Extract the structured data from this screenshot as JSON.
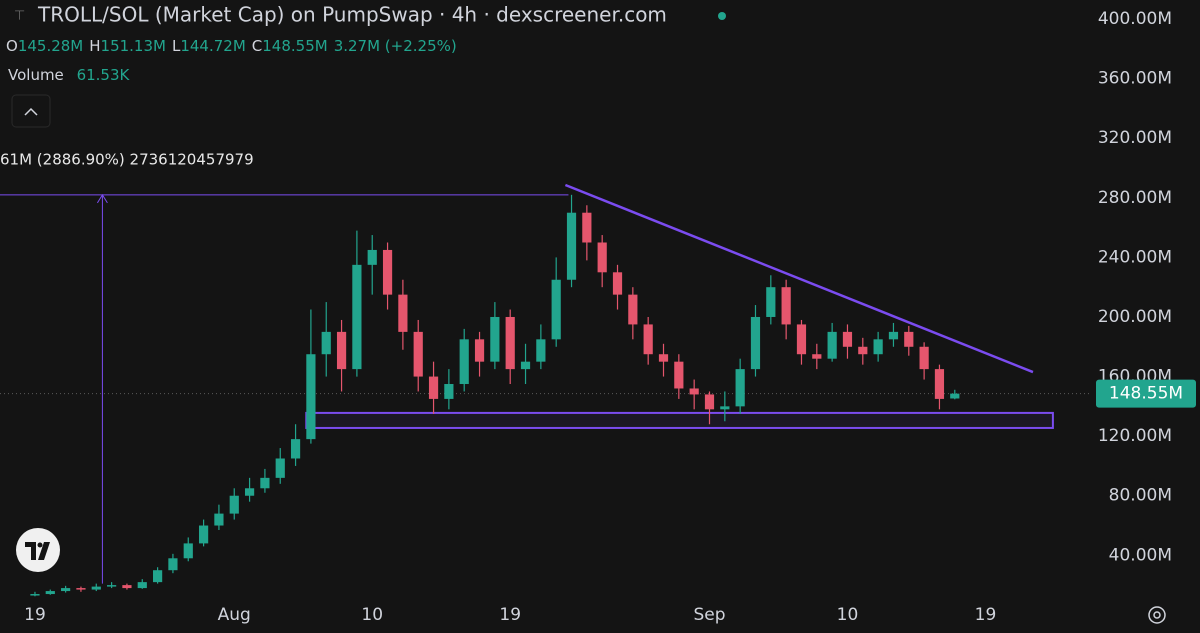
{
  "chart_data": {
    "type": "candlestick",
    "title": "TROLL/SOL (Market Cap) on PumpSwap · 4h · dexscreener.com",
    "ohlc_legend": [
      {
        "key": "O",
        "label": "145.28M"
      },
      {
        "key": "H",
        "label": "151.13M"
      },
      {
        "key": "L",
        "label": "144.72M"
      },
      {
        "key": "C",
        "label": "148.55M"
      }
    ],
    "change_label": "3.27M (+2.25%)",
    "volume_label": "Volume",
    "volume_value": "61.53K",
    "measure_label": "61M (2886.90%) 2736120457979",
    "last_price": {
      "value": 148.55,
      "label": "148.55M"
    },
    "up_color": "#22a58e",
    "down_color": "#e5566d",
    "annotation_color": "#7b4cf0",
    "x": [
      18,
      19,
      20,
      21,
      22,
      23,
      24,
      25,
      26,
      27,
      28,
      29,
      30,
      31,
      32,
      33,
      34,
      35,
      36,
      37,
      38,
      39,
      40,
      41,
      42,
      43,
      44,
      45,
      46,
      47,
      48,
      49,
      50,
      51,
      52,
      53,
      54,
      55,
      56,
      57,
      58,
      59,
      60,
      61,
      62,
      63,
      64,
      65,
      66,
      67,
      68,
      69,
      70,
      71,
      72,
      73,
      74,
      75,
      76,
      77,
      78
    ],
    "open": [
      13,
      14,
      16,
      18,
      17,
      19,
      20,
      18,
      22,
      30,
      38,
      48,
      60,
      68,
      80,
      85,
      92,
      105,
      118,
      175,
      190,
      165,
      235,
      245,
      215,
      190,
      160,
      145,
      155,
      185,
      170,
      200,
      165,
      170,
      185,
      225,
      270,
      250,
      230,
      215,
      195,
      175,
      170,
      152,
      148,
      138,
      140,
      165,
      200,
      220,
      195,
      175,
      172,
      190,
      180,
      175,
      185,
      190,
      180,
      165,
      145.28
    ],
    "high": [
      15.5,
      17,
      19.5,
      19,
      21,
      22,
      21,
      24,
      32,
      41,
      52,
      64,
      74,
      85,
      92,
      98,
      112,
      128,
      205,
      210,
      198,
      258,
      255,
      250,
      225,
      198,
      170,
      165,
      192,
      190,
      210,
      205,
      182,
      195,
      240,
      282,
      275,
      255,
      235,
      220,
      200,
      182,
      175,
      158,
      150,
      150,
      172,
      208,
      228,
      225,
      198,
      182,
      196,
      195,
      186,
      190,
      196,
      194,
      183,
      168,
      151.13
    ],
    "low": [
      12.5,
      13.5,
      15,
      15.5,
      16,
      18,
      17,
      17.5,
      21,
      28,
      36,
      46,
      57,
      64,
      76,
      82,
      88,
      100,
      115,
      160,
      150,
      160,
      215,
      205,
      178,
      150,
      135,
      138,
      150,
      160,
      165,
      155,
      155,
      165,
      180,
      220,
      238,
      220,
      205,
      185,
      168,
      160,
      145,
      138,
      128,
      130,
      135,
      160,
      195,
      185,
      168,
      165,
      170,
      172,
      168,
      170,
      180,
      174,
      158,
      138,
      144.72
    ],
    "close": [
      14,
      16,
      18,
      17,
      19,
      20,
      18,
      22,
      30,
      38,
      48,
      60,
      68,
      80,
      85,
      92,
      105,
      118,
      175,
      190,
      165,
      235,
      245,
      215,
      190,
      160,
      145,
      155,
      185,
      170,
      200,
      165,
      170,
      185,
      225,
      270,
      250,
      230,
      215,
      195,
      175,
      170,
      152,
      148,
      138,
      140,
      165,
      200,
      220,
      195,
      175,
      172,
      190,
      180,
      175,
      185,
      190,
      180,
      165,
      145,
      148.55
    ],
    "xlim": [
      15.72,
      86.82
    ],
    "xticks": [
      {
        "value": 18,
        "label": "19"
      },
      {
        "value": 31,
        "label": "Aug"
      },
      {
        "value": 40,
        "label": "10"
      },
      {
        "value": 49,
        "label": "19"
      },
      {
        "value": 62,
        "label": "Sep"
      },
      {
        "value": 71,
        "label": "10"
      },
      {
        "value": 80,
        "label": "19"
      }
    ],
    "ylim": [
      10,
      412.8
    ],
    "yticks": [
      {
        "value": 40,
        "label": "40.00M"
      },
      {
        "value": 80,
        "label": "80.00M"
      },
      {
        "value": 120,
        "label": "120.00M"
      },
      {
        "value": 160,
        "label": "160.00M"
      },
      {
        "value": 200,
        "label": "200.00M"
      },
      {
        "value": 240,
        "label": "240.00M"
      },
      {
        "value": 280,
        "label": "280.00M"
      },
      {
        "value": 320,
        "label": "320.00M"
      },
      {
        "value": 360,
        "label": "360.00M"
      },
      {
        "value": 400,
        "label": "400.00M"
      }
    ],
    "trendline": {
      "x": [
        52.6,
        83.1
      ],
      "y": [
        288.6,
        163
      ]
    },
    "zone": {
      "x": [
        35.7,
        84.4
      ],
      "y": [
        125.5,
        135.6
      ]
    },
    "measure": {
      "x": [
        22.4,
        52.8
      ],
      "y": [
        21,
        282
      ]
    }
  }
}
